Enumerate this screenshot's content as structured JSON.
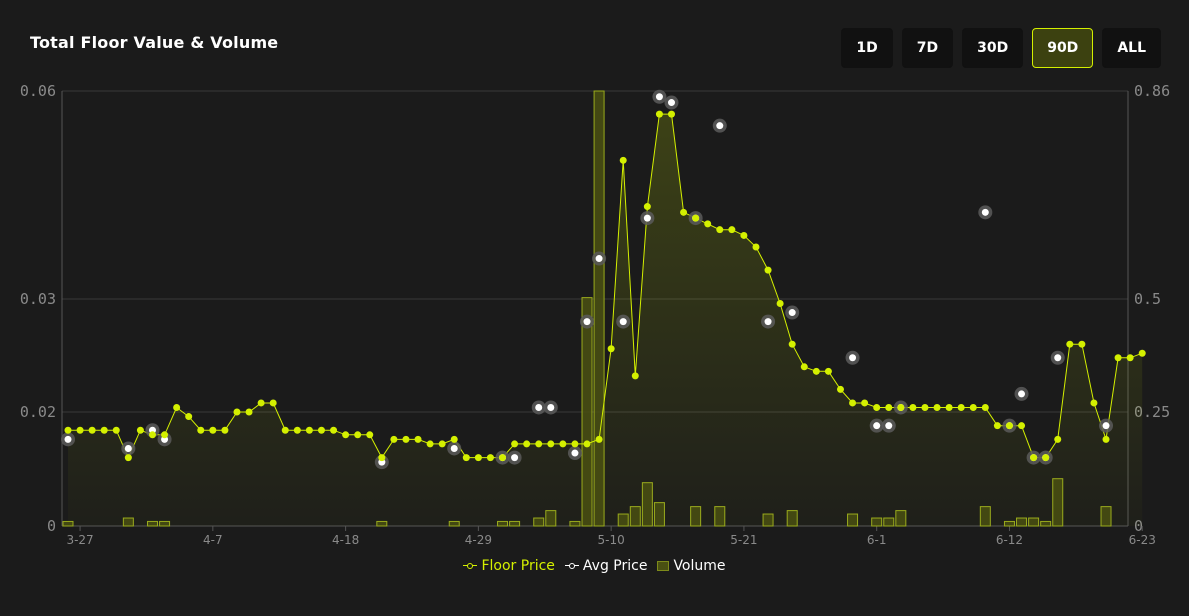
{
  "header": {
    "title": "Total Floor Value & Volume"
  },
  "ranges": [
    {
      "label": "1D",
      "active": false
    },
    {
      "label": "7D",
      "active": false
    },
    {
      "label": "30D",
      "active": false
    },
    {
      "label": "90D",
      "active": true
    },
    {
      "label": "ALL",
      "active": false
    }
  ],
  "colors": {
    "floor": "#d4f000",
    "avg": "#ffffff",
    "volume": "#4a5012",
    "grid": "#3a3a3a",
    "axis_text": "#8a8a8a"
  },
  "chart_data": {
    "type": "bar-line",
    "left_axis": {
      "ticks": [
        0,
        0.02,
        0.03,
        0.06
      ],
      "tick_labels": [
        "0",
        "0.02",
        "0.03",
        "0.06"
      ]
    },
    "right_axis": {
      "ticks": [
        0,
        0.25,
        0.5,
        0.86
      ],
      "tick_labels": [
        "0",
        "0.25",
        "0.5",
        "0.86"
      ]
    },
    "x_tick_labels": [
      {
        "label": "3-27",
        "day": 1
      },
      {
        "label": "4-7",
        "day": 12
      },
      {
        "label": "4-18",
        "day": 23
      },
      {
        "label": "4-29",
        "day": 34
      },
      {
        "label": "5-10",
        "day": 45
      },
      {
        "label": "5-21",
        "day": 56
      },
      {
        "label": "6-1",
        "day": 67
      },
      {
        "label": "6-12",
        "day": 78
      },
      {
        "label": "6-23",
        "day": 89
      }
    ],
    "series": [
      {
        "name": "Floor Price",
        "axis": "right",
        "values": [
          0.21,
          0.21,
          0.21,
          0.21,
          0.21,
          0.15,
          0.21,
          0.2,
          0.2,
          0.26,
          0.24,
          0.21,
          0.21,
          0.21,
          0.25,
          0.25,
          0.27,
          0.27,
          0.21,
          0.21,
          0.21,
          0.21,
          0.21,
          0.2,
          0.2,
          0.2,
          0.15,
          0.19,
          0.19,
          0.19,
          0.18,
          0.18,
          0.19,
          0.15,
          0.15,
          0.15,
          0.15,
          0.18,
          0.18,
          0.18,
          0.18,
          0.18,
          0.18,
          0.18,
          0.19,
          0.39,
          0.74,
          0.33,
          0.66,
          0.82,
          0.82,
          0.65,
          0.64,
          0.63,
          0.62,
          0.62,
          0.61,
          0.59,
          0.55,
          0.49,
          0.4,
          0.35,
          0.34,
          0.34,
          0.3,
          0.27,
          0.27,
          0.26,
          0.26,
          0.26,
          0.26,
          0.26,
          0.26,
          0.26,
          0.26,
          0.26,
          0.26,
          0.22,
          0.22,
          0.22,
          0.15,
          0.15,
          0.19,
          0.4,
          0.4,
          0.27,
          0.19,
          0.37,
          0.37,
          0.38
        ]
      },
      {
        "name": "Avg Price",
        "axis": "right",
        "points": [
          [
            0,
            0.19
          ],
          [
            5,
            0.17
          ],
          [
            7,
            0.21
          ],
          [
            8,
            0.19
          ],
          [
            26,
            0.14
          ],
          [
            32,
            0.17
          ],
          [
            36,
            0.15
          ],
          [
            37,
            0.15
          ],
          [
            39,
            0.26
          ],
          [
            40,
            0.26
          ],
          [
            42,
            0.16
          ],
          [
            43,
            0.45
          ],
          [
            44,
            0.57
          ],
          [
            46,
            0.45
          ],
          [
            48,
            0.64
          ],
          [
            49,
            0.85
          ],
          [
            50,
            0.84
          ],
          [
            52,
            0.64
          ],
          [
            54,
            0.8
          ],
          [
            58,
            0.45
          ],
          [
            60,
            0.47
          ],
          [
            65,
            0.37
          ],
          [
            67,
            0.22
          ],
          [
            68,
            0.22
          ],
          [
            69,
            0.26
          ],
          [
            76,
            0.65
          ],
          [
            78,
            0.22
          ],
          [
            79,
            0.29
          ],
          [
            80,
            0.15
          ],
          [
            81,
            0.15
          ],
          [
            82,
            0.37
          ],
          [
            86,
            0.22
          ]
        ]
      },
      {
        "name": "Volume",
        "axis": "left",
        "points": [
          [
            0,
            0.0008
          ],
          [
            5,
            0.0014
          ],
          [
            7,
            0.0008
          ],
          [
            8,
            0.0008
          ],
          [
            26,
            0.0008
          ],
          [
            32,
            0.0008
          ],
          [
            36,
            0.0008
          ],
          [
            37,
            0.0008
          ],
          [
            39,
            0.0014
          ],
          [
            40,
            0.0027
          ],
          [
            42,
            0.0008
          ],
          [
            43,
            0.0302
          ],
          [
            44,
            0.0657
          ],
          [
            46,
            0.0021
          ],
          [
            47,
            0.0034
          ],
          [
            48,
            0.0076
          ],
          [
            49,
            0.0041
          ],
          [
            52,
            0.0034
          ],
          [
            54,
            0.0034
          ],
          [
            58,
            0.0021
          ],
          [
            60,
            0.0027
          ],
          [
            65,
            0.0021
          ],
          [
            67,
            0.0014
          ],
          [
            68,
            0.0014
          ],
          [
            69,
            0.0027
          ],
          [
            76,
            0.0034
          ],
          [
            78,
            0.0008
          ],
          [
            79,
            0.0014
          ],
          [
            80,
            0.0014
          ],
          [
            81,
            0.0008
          ],
          [
            82,
            0.0083
          ],
          [
            86,
            0.0034
          ]
        ]
      }
    ]
  },
  "legend": {
    "floor": "Floor Price",
    "avg": "Avg Price",
    "volume": "Volume"
  }
}
